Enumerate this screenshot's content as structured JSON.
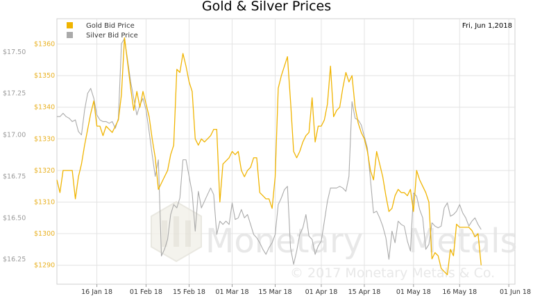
{
  "chart_data": {
    "type": "line",
    "title": "Gold & Silver Prices",
    "date_label": "Fri, Jun 1,2018",
    "watermark": {
      "brand_left": "Monetary",
      "brand_right": "Metals",
      "copyright": "© 2017 Monetary Metals & Co."
    },
    "x_ticks": [
      "16 Jan 18",
      "01 Feb 18",
      "15 Feb 18",
      "01 Mar 18",
      "15 Mar 18",
      "01 Apr 18",
      "15 Apr 18",
      "01 May 18",
      "16 May 18",
      "01 Jun 18"
    ],
    "x_domain": [
      0,
      149
    ],
    "x_tick_positions": [
      13,
      29,
      43,
      57,
      71,
      86,
      100,
      116,
      131,
      147
    ],
    "left_axis": {
      "series": "silver",
      "ylim": [
        16.1,
        17.7
      ],
      "ticks": [
        16.25,
        16.5,
        16.75,
        17.0,
        17.25,
        17.5
      ],
      "tick_labels": [
        "$16.25",
        "$16.50",
        "$16.75",
        "$17.00",
        "$17.25",
        "$17.50"
      ]
    },
    "right_axis": {
      "series": "gold",
      "ylim": [
        1284,
        1368
      ],
      "ticks": [
        1290,
        1300,
        1310,
        1320,
        1330,
        1340,
        1350,
        1360
      ],
      "tick_labels": [
        "$1290",
        "$1300",
        "$1310",
        "$1320",
        "$1330",
        "$1340",
        "$1350",
        "$1360"
      ]
    },
    "grid": true,
    "legend_position": "top-left",
    "series": [
      {
        "name": "Gold Bid Price",
        "key": "gold",
        "color": "#f0b400",
        "points": [
          [
            0,
            1317
          ],
          [
            1,
            1313
          ],
          [
            2,
            1320
          ],
          [
            3,
            1320
          ],
          [
            4,
            1320
          ],
          [
            5,
            1320
          ],
          [
            6,
            1311
          ],
          [
            7,
            1318
          ],
          [
            8,
            1322
          ],
          [
            9,
            1328
          ],
          [
            10,
            1333
          ],
          [
            11,
            1338
          ],
          [
            12,
            1342
          ],
          [
            13,
            1334
          ],
          [
            14,
            1334
          ],
          [
            15,
            1331
          ],
          [
            16,
            1334
          ],
          [
            17,
            1333
          ],
          [
            18,
            1332
          ],
          [
            19,
            1334
          ],
          [
            20,
            1336
          ],
          [
            21,
            1344
          ],
          [
            22,
            1362
          ],
          [
            23,
            1354
          ],
          [
            24,
            1346
          ],
          [
            25,
            1339
          ],
          [
            26,
            1345
          ],
          [
            27,
            1340
          ],
          [
            28,
            1345
          ],
          [
            29,
            1341
          ],
          [
            30,
            1337
          ],
          [
            31,
            1330
          ],
          [
            32,
            1324
          ],
          [
            33,
            1314
          ],
          [
            34,
            1316
          ],
          [
            35,
            1318
          ],
          [
            36,
            1320
          ],
          [
            37,
            1325
          ],
          [
            38,
            1328
          ],
          [
            39,
            1352
          ],
          [
            40,
            1351
          ],
          [
            41,
            1357
          ],
          [
            42,
            1353
          ],
          [
            43,
            1348
          ],
          [
            44,
            1345
          ],
          [
            45,
            1330
          ],
          [
            46,
            1328
          ],
          [
            47,
            1330
          ],
          [
            48,
            1329
          ],
          [
            49,
            1330
          ],
          [
            50,
            1331
          ],
          [
            51,
            1333
          ],
          [
            52,
            1333
          ],
          [
            53,
            1310
          ],
          [
            54,
            1322
          ],
          [
            55,
            1323
          ],
          [
            56,
            1324
          ],
          [
            57,
            1326
          ],
          [
            58,
            1325
          ],
          [
            59,
            1326
          ],
          [
            60,
            1320
          ],
          [
            61,
            1318
          ],
          [
            62,
            1320
          ],
          [
            63,
            1321
          ],
          [
            64,
            1324
          ],
          [
            65,
            1324
          ],
          [
            66,
            1313
          ],
          [
            67,
            1312
          ],
          [
            68,
            1311
          ],
          [
            69,
            1311
          ],
          [
            70,
            1308
          ],
          [
            71,
            1318
          ],
          [
            72,
            1346
          ],
          [
            73,
            1350
          ],
          [
            74,
            1353
          ],
          [
            75,
            1356
          ],
          [
            76,
            1342
          ],
          [
            77,
            1326
          ],
          [
            78,
            1324
          ],
          [
            79,
            1326
          ],
          [
            80,
            1329
          ],
          [
            81,
            1331
          ],
          [
            82,
            1332
          ],
          [
            83,
            1343
          ],
          [
            84,
            1329
          ],
          [
            85,
            1334
          ],
          [
            86,
            1334
          ],
          [
            87,
            1336
          ],
          [
            88,
            1341
          ],
          [
            89,
            1353
          ],
          [
            90,
            1337
          ],
          [
            91,
            1339
          ],
          [
            92,
            1340
          ],
          [
            93,
            1346
          ],
          [
            94,
            1351
          ],
          [
            95,
            1348
          ],
          [
            96,
            1350
          ],
          [
            97,
            1340
          ],
          [
            98,
            1335
          ],
          [
            99,
            1332
          ],
          [
            100,
            1330
          ],
          [
            101,
            1326
          ],
          [
            102,
            1320
          ],
          [
            103,
            1317
          ],
          [
            104,
            1326
          ],
          [
            105,
            1322
          ],
          [
            106,
            1318
          ],
          [
            107,
            1312
          ],
          [
            108,
            1307
          ],
          [
            109,
            1308
          ],
          [
            110,
            1312
          ],
          [
            111,
            1314
          ],
          [
            112,
            1313
          ],
          [
            113,
            1313
          ],
          [
            114,
            1312
          ],
          [
            115,
            1314
          ],
          [
            116,
            1307
          ],
          [
            117,
            1320
          ],
          [
            118,
            1317
          ],
          [
            119,
            1315
          ],
          [
            120,
            1313
          ],
          [
            121,
            1310
          ],
          [
            122,
            1292
          ],
          [
            123,
            1294
          ],
          [
            124,
            1293
          ],
          [
            125,
            1289
          ],
          [
            126,
            1288
          ],
          [
            127,
            1287
          ],
          [
            128,
            1295
          ],
          [
            129,
            1293
          ],
          [
            130,
            1303
          ],
          [
            131,
            1302
          ],
          [
            132,
            1302
          ],
          [
            133,
            1302
          ],
          [
            134,
            1302
          ],
          [
            135,
            1301
          ],
          [
            136,
            1299
          ],
          [
            137,
            1300
          ],
          [
            138,
            1290
          ]
        ]
      },
      {
        "name": "Silver Bid Price",
        "key": "silver",
        "color": "#aaaaaa",
        "points": [
          [
            0,
            17.11
          ],
          [
            1,
            17.11
          ],
          [
            2,
            17.13
          ],
          [
            3,
            17.11
          ],
          [
            4,
            17.1
          ],
          [
            5,
            17.08
          ],
          [
            6,
            17.09
          ],
          [
            7,
            17.02
          ],
          [
            8,
            17.0
          ],
          [
            9,
            17.15
          ],
          [
            10,
            17.25
          ],
          [
            11,
            17.28
          ],
          [
            12,
            17.22
          ],
          [
            13,
            17.12
          ],
          [
            14,
            17.09
          ],
          [
            15,
            17.08
          ],
          [
            16,
            17.08
          ],
          [
            17,
            17.07
          ],
          [
            18,
            17.08
          ],
          [
            19,
            17.04
          ],
          [
            20,
            17.1
          ],
          [
            21,
            17.55
          ],
          [
            22,
            17.58
          ],
          [
            23,
            17.45
          ],
          [
            24,
            17.32
          ],
          [
            25,
            17.22
          ],
          [
            26,
            17.12
          ],
          [
            27,
            17.18
          ],
          [
            28,
            17.22
          ],
          [
            29,
            17.15
          ],
          [
            30,
            17.02
          ],
          [
            31,
            16.88
          ],
          [
            32,
            16.75
          ],
          [
            33,
            16.85
          ],
          [
            34,
            16.27
          ],
          [
            35,
            16.31
          ],
          [
            36,
            16.37
          ],
          [
            37,
            16.52
          ],
          [
            38,
            16.58
          ],
          [
            39,
            16.56
          ],
          [
            40,
            16.62
          ],
          [
            41,
            16.85
          ],
          [
            42,
            16.85
          ],
          [
            43,
            16.75
          ],
          [
            44,
            16.65
          ],
          [
            45,
            16.42
          ],
          [
            46,
            16.66
          ],
          [
            47,
            16.56
          ],
          [
            48,
            16.6
          ],
          [
            49,
            16.64
          ],
          [
            50,
            16.68
          ],
          [
            51,
            16.64
          ],
          [
            52,
            16.4
          ],
          [
            53,
            16.48
          ],
          [
            54,
            16.46
          ],
          [
            55,
            16.48
          ],
          [
            56,
            16.46
          ],
          [
            57,
            16.59
          ],
          [
            58,
            16.49
          ],
          [
            59,
            16.5
          ],
          [
            60,
            16.55
          ],
          [
            61,
            16.5
          ],
          [
            62,
            16.52
          ],
          [
            63,
            16.46
          ],
          [
            64,
            16.4
          ],
          [
            65,
            16.38
          ],
          [
            66,
            16.35
          ],
          [
            67,
            16.31
          ],
          [
            68,
            16.28
          ],
          [
            69,
            16.32
          ],
          [
            70,
            16.35
          ],
          [
            71,
            16.4
          ],
          [
            72,
            16.58
          ],
          [
            73,
            16.62
          ],
          [
            74,
            16.67
          ],
          [
            75,
            16.69
          ],
          [
            76,
            16.32
          ],
          [
            77,
            16.22
          ],
          [
            78,
            16.3
          ],
          [
            79,
            16.4
          ],
          [
            80,
            16.44
          ],
          [
            81,
            16.52
          ],
          [
            82,
            16.39
          ],
          [
            83,
            16.37
          ],
          [
            84,
            16.28
          ],
          [
            85,
            16.33
          ],
          [
            86,
            16.36
          ],
          [
            87,
            16.48
          ],
          [
            88,
            16.6
          ],
          [
            89,
            16.68
          ],
          [
            90,
            16.68
          ],
          [
            91,
            16.68
          ],
          [
            92,
            16.69
          ],
          [
            93,
            16.68
          ],
          [
            94,
            16.66
          ],
          [
            95,
            16.75
          ],
          [
            96,
            17.2
          ],
          [
            97,
            17.1
          ],
          [
            98,
            17.09
          ],
          [
            99,
            17.06
          ],
          [
            100,
            16.99
          ],
          [
            101,
            16.92
          ],
          [
            102,
            16.73
          ],
          [
            103,
            16.53
          ],
          [
            104,
            16.54
          ],
          [
            105,
            16.5
          ],
          [
            106,
            16.45
          ],
          [
            107,
            16.38
          ],
          [
            108,
            16.25
          ],
          [
            109,
            16.42
          ],
          [
            110,
            16.35
          ],
          [
            111,
            16.48
          ],
          [
            112,
            16.46
          ],
          [
            113,
            16.45
          ],
          [
            114,
            16.36
          ],
          [
            115,
            16.3
          ],
          [
            116,
            16.65
          ],
          [
            117,
            16.63
          ],
          [
            118,
            16.55
          ],
          [
            119,
            16.5
          ],
          [
            120,
            16.31
          ],
          [
            121,
            16.34
          ],
          [
            122,
            16.47
          ],
          [
            123,
            16.45
          ],
          [
            124,
            16.44
          ],
          [
            125,
            16.45
          ],
          [
            126,
            16.56
          ],
          [
            127,
            16.59
          ],
          [
            128,
            16.51
          ],
          [
            129,
            16.52
          ],
          [
            130,
            16.54
          ],
          [
            131,
            16.58
          ],
          [
            132,
            16.53
          ],
          [
            133,
            16.5
          ],
          [
            134,
            16.45
          ],
          [
            135,
            16.48
          ],
          [
            136,
            16.5
          ],
          [
            137,
            16.46
          ],
          [
            138,
            16.43
          ]
        ]
      }
    ]
  }
}
